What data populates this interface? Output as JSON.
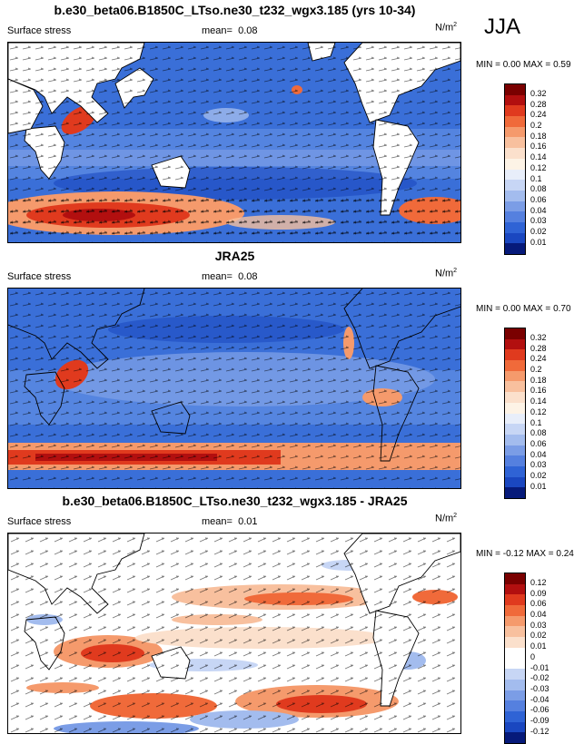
{
  "season": "JJA",
  "colors": {
    "seq": [
      "#7a0000",
      "#b20f0f",
      "#e03a1e",
      "#f06a3a",
      "#f59a6c",
      "#f8c09e",
      "#fbe0cc",
      "#fdf3e6",
      "#e8eefa",
      "#c7d6f5",
      "#a3bcee",
      "#7b9de6",
      "#5580df",
      "#2f63d5",
      "#1a47c0",
      "#0e2fa0",
      "#061a7a"
    ],
    "ocean_bg_seq": "#3a6fd8",
    "land": "#ffffff",
    "coast": "#000000"
  },
  "panels": [
    {
      "title": "b.e30_beta06.B1850C_LTso.ne30_t232_wgx3.185 (yrs 10-34)",
      "left_label": "Surface stress",
      "mean_label": "mean=",
      "mean_value": "0.08",
      "units": "N/m",
      "units_sup": "2",
      "min_label": "MIN =",
      "min_value": "0.00",
      "max_label": "MAX =",
      "max_value": "0.59",
      "levels": [
        "0.32",
        "0.28",
        "0.24",
        "0.2",
        "0.18",
        "0.16",
        "0.14",
        "0.12",
        "0.1",
        "0.08",
        "0.06",
        "0.04",
        "0.03",
        "0.02",
        "0.01"
      ]
    },
    {
      "title": "JRA25",
      "left_label": "Surface stress",
      "mean_label": "mean=",
      "mean_value": "0.08",
      "units": "N/m",
      "units_sup": "2",
      "min_label": "MIN =",
      "min_value": "0.00",
      "max_label": "MAX =",
      "max_value": "0.70",
      "levels": [
        "0.32",
        "0.28",
        "0.24",
        "0.2",
        "0.18",
        "0.16",
        "0.14",
        "0.12",
        "0.1",
        "0.08",
        "0.06",
        "0.04",
        "0.03",
        "0.02",
        "0.01"
      ]
    },
    {
      "title": "b.e30_beta06.B1850C_LTso.ne30_t232_wgx3.185 - JRA25",
      "left_label": "Surface stress",
      "mean_label": "mean=",
      "mean_value": "0.01",
      "units": "N/m",
      "units_sup": "2",
      "min_label": "MIN =",
      "min_value": "-0.12",
      "max_label": "MAX =",
      "max_value": "0.24",
      "levels": [
        "0.12",
        "0.09",
        "0.06",
        "0.04",
        "0.03",
        "0.02",
        "0.01",
        "0",
        "-0.01",
        "-0.02",
        "-0.03",
        "-0.04",
        "-0.06",
        "-0.09",
        "-0.12"
      ]
    }
  ]
}
